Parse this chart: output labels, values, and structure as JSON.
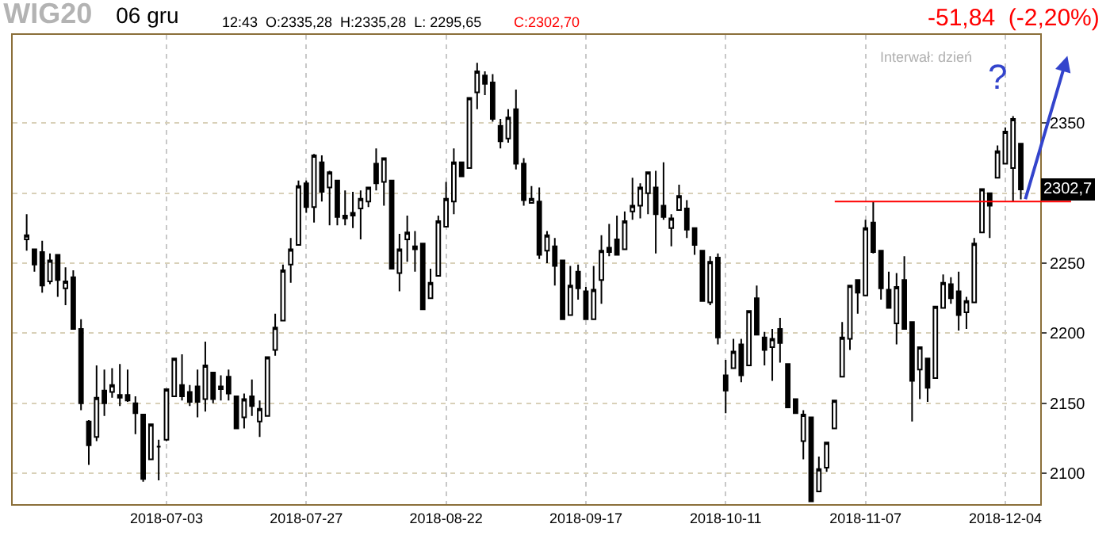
{
  "chart_data": {
    "type": "candlestick",
    "title": "WIG20",
    "subtitle": "06 gru",
    "annotations": [
      "12:43  O:2335,28  H:2335,28  L: 2295,65",
      "C:2302,70",
      "-51,84  (-2,20%)",
      "Interwał: dzień",
      "?",
      {
        "text": "2302,7",
        "y": 2302.7
      }
    ],
    "categories": [
      null,
      null,
      null,
      null,
      null,
      null,
      null,
      null,
      null,
      null,
      null,
      null,
      null,
      null,
      null,
      null,
      null,
      null,
      "2018-07-03",
      null,
      null,
      null,
      null,
      null,
      null,
      null,
      null,
      null,
      null,
      null,
      null,
      null,
      null,
      null,
      null,
      null,
      "2018-07-27",
      null,
      null,
      null,
      null,
      null,
      null,
      null,
      null,
      null,
      null,
      null,
      null,
      null,
      null,
      null,
      null,
      null,
      "2018-08-22",
      null,
      null,
      null,
      null,
      null,
      null,
      null,
      null,
      null,
      null,
      null,
      null,
      null,
      null,
      null,
      null,
      null,
      "2018-09-17",
      null,
      null,
      null,
      null,
      null,
      null,
      null,
      null,
      null,
      null,
      null,
      null,
      null,
      null,
      null,
      null,
      null,
      "2018-10-11",
      null,
      null,
      null,
      null,
      null,
      null,
      null,
      null,
      null,
      null,
      null,
      null,
      null,
      null,
      null,
      null,
      null,
      "2018-11-07",
      null,
      null,
      null,
      null,
      null,
      null,
      null,
      null,
      null,
      null,
      null,
      null,
      null,
      null,
      null,
      null,
      null,
      "2018-12-04",
      null,
      null
    ],
    "color": "#000000",
    "ohlc": [
      [
        2267,
        2285,
        2259,
        2270
      ],
      [
        2260,
        2260,
        2244,
        2249
      ],
      [
        2258,
        2266,
        2229,
        2234
      ],
      [
        2237,
        2257,
        2235,
        2252
      ],
      [
        2256,
        2256,
        2226,
        2238
      ],
      [
        2232,
        2247,
        2220,
        2237
      ],
      [
        2240,
        2245,
        2203,
        2203
      ],
      [
        2203,
        2210,
        2145,
        2150
      ],
      [
        2137,
        2138,
        2106,
        2120
      ],
      [
        2126,
        2177,
        2123,
        2154
      ],
      [
        2159,
        2174,
        2141,
        2150
      ],
      [
        2158,
        2175,
        2154,
        2163
      ],
      [
        2156,
        2178,
        2148,
        2154
      ],
      [
        2156,
        2174,
        2151,
        2152
      ],
      [
        2150,
        2155,
        2128,
        2143
      ],
      [
        2142,
        2142,
        2094,
        2096
      ],
      [
        2110,
        2135,
        2110,
        2135
      ],
      [
        2119,
        2124,
        2095,
        2119
      ],
      [
        2124,
        2160,
        2123,
        2160
      ],
      [
        2155,
        2182,
        2155,
        2182
      ],
      [
        2163,
        2185,
        2152,
        2155
      ],
      [
        2158,
        2163,
        2148,
        2151
      ],
      [
        2162,
        2174,
        2140,
        2151
      ],
      [
        2153,
        2194,
        2144,
        2177
      ],
      [
        2172,
        2172,
        2150,
        2153
      ],
      [
        2162,
        2170,
        2152,
        2160
      ],
      [
        2169,
        2174,
        2152,
        2157
      ],
      [
        2155,
        2155,
        2132,
        2132
      ],
      [
        2140,
        2157,
        2132,
        2153
      ],
      [
        2155,
        2167,
        2141,
        2148
      ],
      [
        2137,
        2152,
        2126,
        2146
      ],
      [
        2141,
        2183,
        2141,
        2183
      ],
      [
        2188,
        2214,
        2184,
        2204
      ],
      [
        2209,
        2249,
        2209,
        2245
      ],
      [
        2249,
        2268,
        2236,
        2260
      ],
      [
        2263,
        2309,
        2263,
        2305
      ],
      [
        2307,
        2309,
        2286,
        2290
      ],
      [
        2290,
        2328,
        2279,
        2327
      ],
      [
        2322,
        2327,
        2294,
        2301
      ],
      [
        2304,
        2316,
        2277,
        2315
      ],
      [
        2309,
        2309,
        2277,
        2283
      ],
      [
        2284,
        2302,
        2277,
        2282
      ],
      [
        2284,
        2301,
        2275,
        2286
      ],
      [
        2289,
        2302,
        2267,
        2296
      ],
      [
        2294,
        2304,
        2290,
        2304
      ],
      [
        2321,
        2332,
        2302,
        2307
      ],
      [
        2308,
        2325,
        2291,
        2325
      ],
      [
        2309,
        2309,
        2246,
        2246
      ],
      [
        2243,
        2271,
        2230,
        2260
      ],
      [
        2267,
        2284,
        2251,
        2272
      ],
      [
        2262,
        2273,
        2244,
        2260
      ],
      [
        2264,
        2264,
        2217,
        2217
      ],
      [
        2225,
        2246,
        2225,
        2236
      ],
      [
        2241,
        2284,
        2241,
        2280
      ],
      [
        2276,
        2308,
        2276,
        2296
      ],
      [
        2294,
        2332,
        2285,
        2322
      ],
      [
        2322,
        2322,
        2312,
        2312
      ],
      [
        2318,
        2368,
        2318,
        2368
      ],
      [
        2372,
        2393,
        2360,
        2387
      ],
      [
        2384,
        2387,
        2370,
        2378
      ],
      [
        2379,
        2385,
        2351,
        2353
      ],
      [
        2348,
        2353,
        2332,
        2337
      ],
      [
        2339,
        2360,
        2336,
        2354
      ],
      [
        2360,
        2374,
        2317,
        2321
      ],
      [
        2321,
        2325,
        2291,
        2295
      ],
      [
        2293,
        2305,
        2293,
        2296
      ],
      [
        2294,
        2304,
        2253,
        2256
      ],
      [
        2259,
        2273,
        2250,
        2270
      ],
      [
        2262,
        2268,
        2234,
        2248
      ],
      [
        2252,
        2252,
        2210,
        2210
      ],
      [
        2213,
        2248,
        2213,
        2234
      ],
      [
        2244,
        2249,
        2224,
        2232
      ],
      [
        2230,
        2233,
        2210,
        2210
      ],
      [
        2210,
        2248,
        2210,
        2231
      ],
      [
        2238,
        2270,
        2221,
        2259
      ],
      [
        2261,
        2278,
        2255,
        2258
      ],
      [
        2267,
        2284,
        2256,
        2256
      ],
      [
        2260,
        2287,
        2260,
        2280
      ],
      [
        2287,
        2311,
        2281,
        2291
      ],
      [
        2291,
        2307,
        2282,
        2304
      ],
      [
        2300,
        2315,
        2285,
        2315
      ],
      [
        2304,
        2316,
        2257,
        2285
      ],
      [
        2291,
        2322,
        2281,
        2283
      ],
      [
        2275,
        2285,
        2262,
        2282
      ],
      [
        2288,
        2306,
        2288,
        2298
      ],
      [
        2289,
        2295,
        2268,
        2274
      ],
      [
        2275,
        2275,
        2256,
        2263
      ],
      [
        2259,
        2259,
        2223,
        2223
      ],
      [
        2222,
        2255,
        2220,
        2251
      ],
      [
        2254,
        2257,
        2192,
        2197
      ],
      [
        2170,
        2181,
        2143,
        2159
      ],
      [
        2175,
        2196,
        2175,
        2187
      ],
      [
        2192,
        2196,
        2165,
        2170
      ],
      [
        2177,
        2216,
        2177,
        2216
      ],
      [
        2225,
        2234,
        2199,
        2199
      ],
      [
        2197,
        2201,
        2177,
        2188
      ],
      [
        2190,
        2203,
        2166,
        2196
      ],
      [
        2203,
        2211,
        2179,
        2193
      ],
      [
        2178,
        2178,
        2147,
        2147
      ],
      [
        2153,
        2153,
        2143,
        2143
      ],
      [
        2123,
        2145,
        2110,
        2142
      ],
      [
        2140,
        2140,
        2080,
        2080
      ],
      [
        2087,
        2112,
        2087,
        2103
      ],
      [
        2104,
        2122,
        2101,
        2122
      ],
      [
        2132,
        2152,
        2132,
        2152
      ],
      [
        2169,
        2208,
        2169,
        2197
      ],
      [
        2196,
        2234,
        2188,
        2234
      ],
      [
        2238,
        2238,
        2214,
        2229
      ],
      [
        2227,
        2281,
        2227,
        2275
      ],
      [
        2279,
        2294,
        2257,
        2258
      ],
      [
        2259,
        2259,
        2224,
        2232
      ],
      [
        2231,
        2244,
        2218,
        2218
      ],
      [
        2207,
        2243,
        2192,
        2233
      ],
      [
        2238,
        2255,
        2203,
        2203
      ],
      [
        2208,
        2208,
        2137,
        2166
      ],
      [
        2174,
        2190,
        2153,
        2190
      ],
      [
        2182,
        2182,
        2151,
        2161
      ],
      [
        2168,
        2219,
        2168,
        2219
      ],
      [
        2218,
        2242,
        2218,
        2236
      ],
      [
        2235,
        2240,
        2221,
        2225
      ],
      [
        2230,
        2244,
        2202,
        2213
      ],
      [
        2215,
        2226,
        2203,
        2223
      ],
      [
        2222,
        2268,
        2222,
        2264
      ],
      [
        2272,
        2303,
        2272,
        2303
      ],
      [
        2300,
        2300,
        2268,
        2291
      ],
      [
        2311,
        2334,
        2311,
        2330
      ],
      [
        2321,
        2347,
        2321,
        2344
      ],
      [
        2318,
        2355,
        2294,
        2353
      ],
      [
        2335.28,
        2335.28,
        2295.65,
        2302.7
      ]
    ],
    "ylim": [
      2078,
      2413
    ],
    "yticks": [
      2100,
      2150,
      2200,
      2250,
      {
        "value": 2300,
        "label": null
      },
      2350
    ],
    "ref_lines": [
      {
        "axis": "y",
        "value": 2294,
        "color": "#ff0000"
      }
    ],
    "grid": true
  }
}
